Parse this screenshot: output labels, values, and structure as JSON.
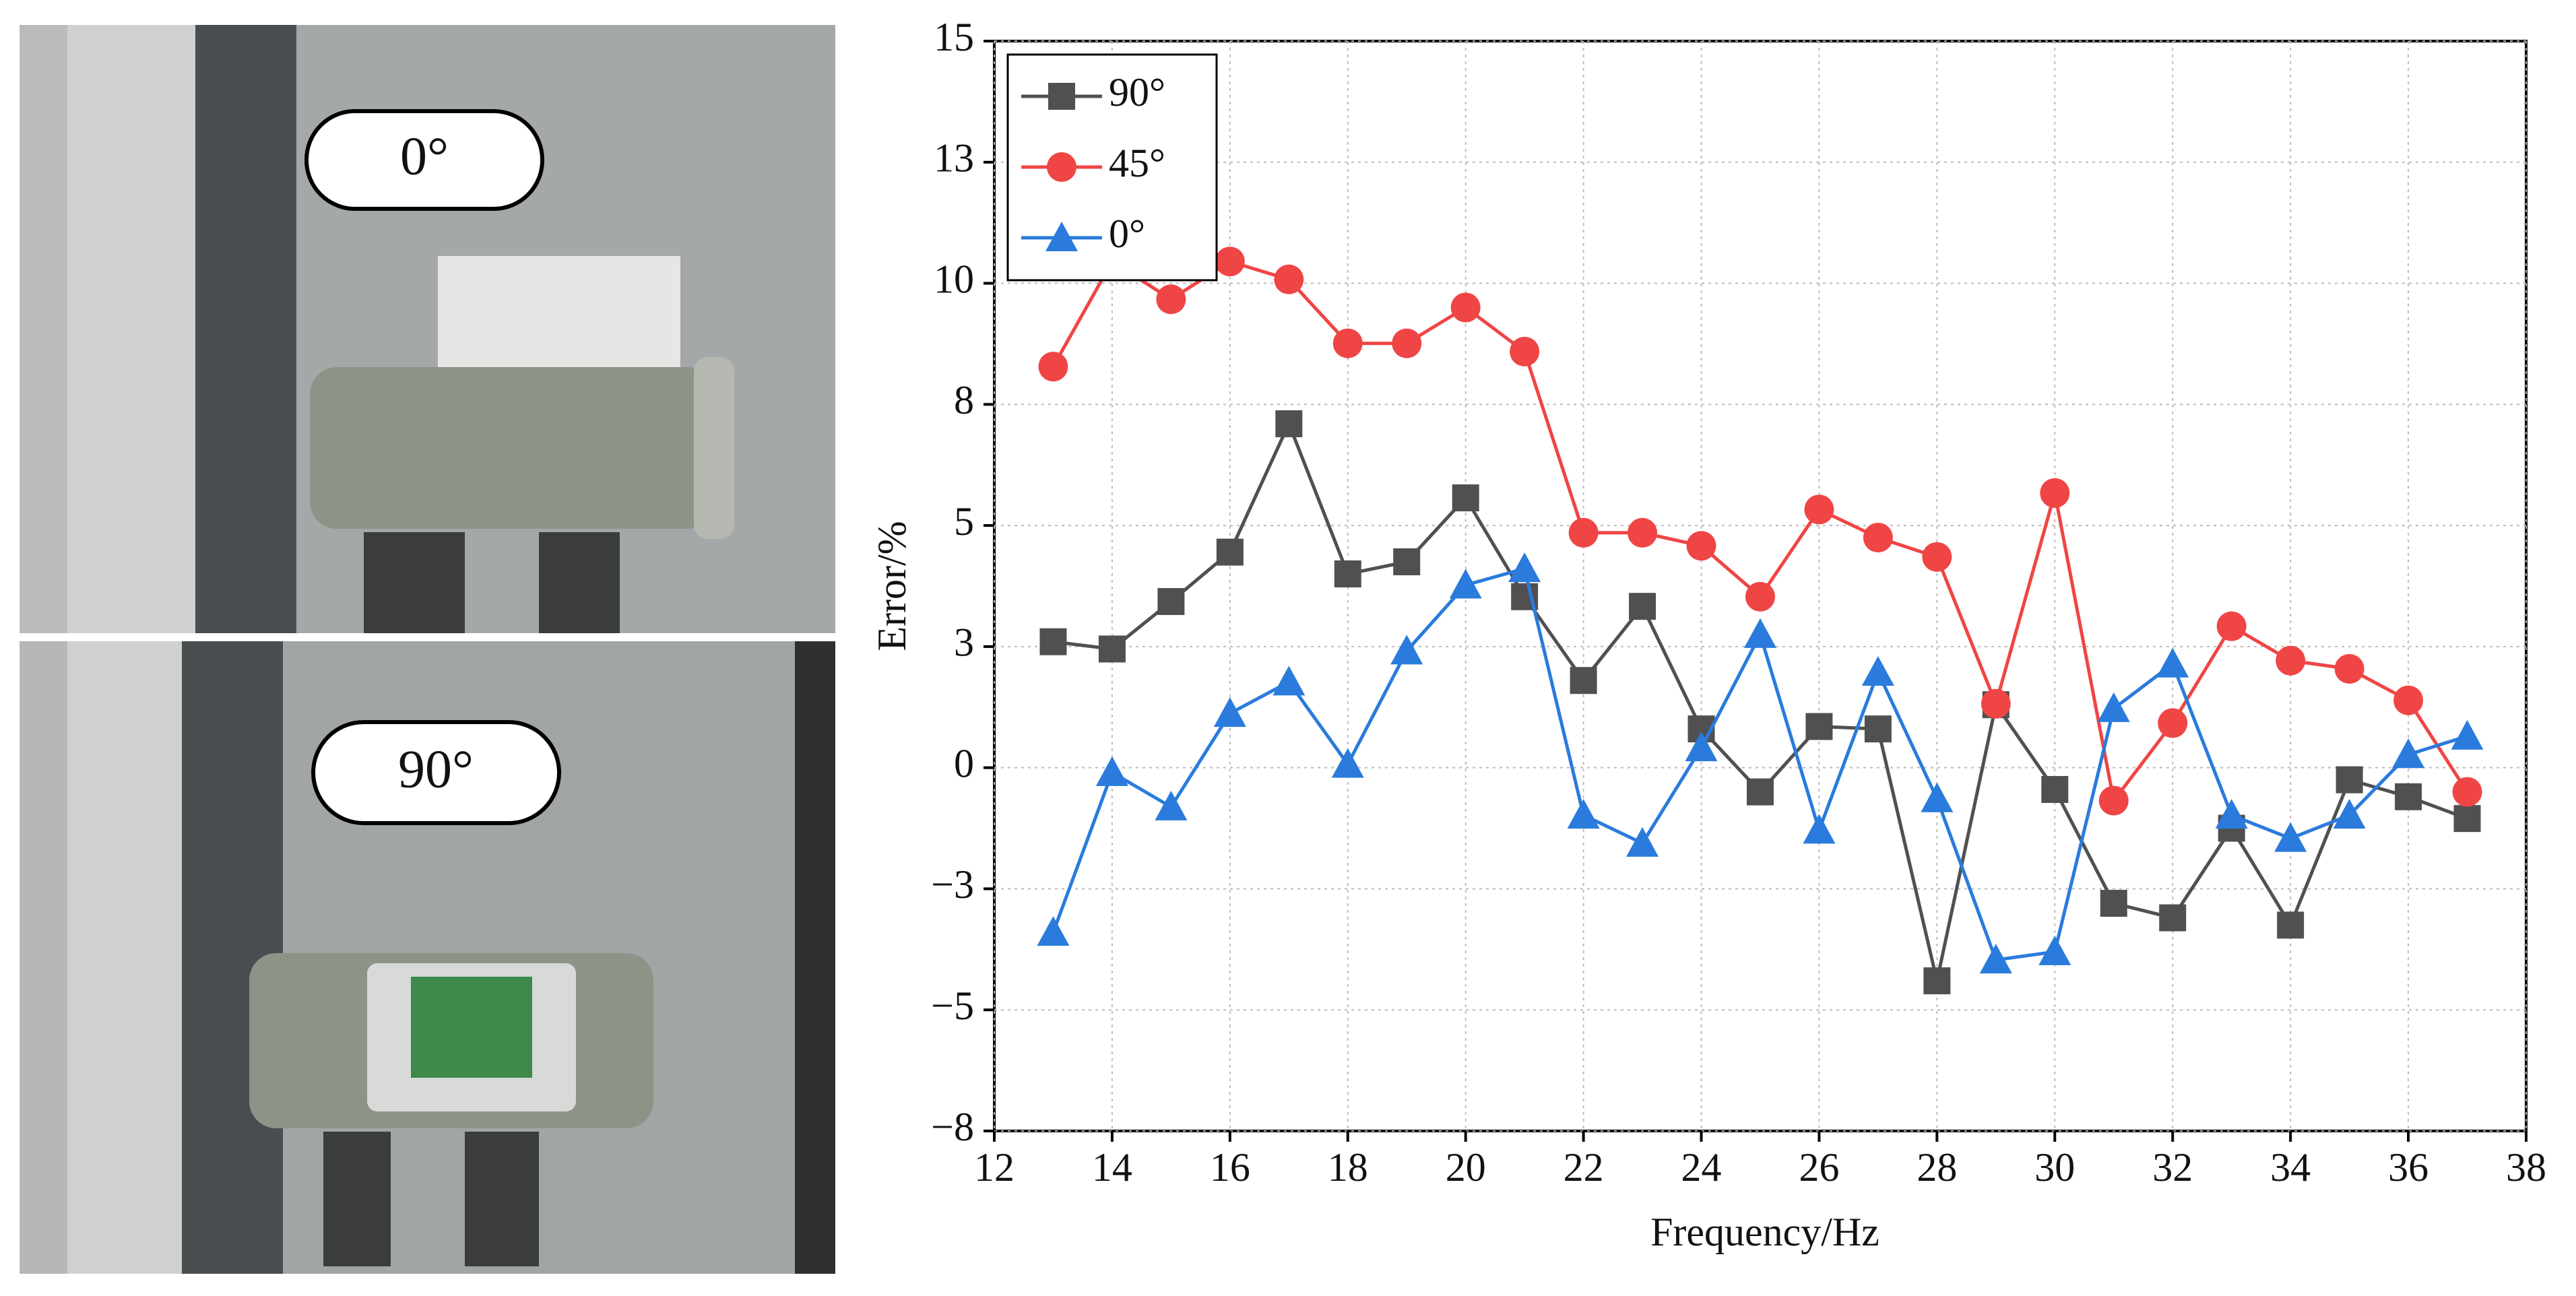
{
  "photos": {
    "top_label": "0°",
    "bottom_label": "90°"
  },
  "chart_data": {
    "type": "line",
    "x_label": "Frequency/Hz",
    "y_label": "Error/%",
    "x": [
      13,
      14,
      15,
      16,
      17,
      18,
      19,
      20,
      21,
      22,
      23,
      24,
      25,
      26,
      27,
      28,
      29,
      30,
      31,
      32,
      33,
      34,
      35,
      36,
      37
    ],
    "series": [
      {
        "name": "90°",
        "color": "#505050",
        "marker": "square",
        "values": [
          2.6,
          2.45,
          3.43,
          4.45,
          7.1,
          4.0,
          4.25,
          5.57,
          3.53,
          1.8,
          3.33,
          0.8,
          -0.5,
          0.85,
          0.8,
          -4.4,
          1.3,
          -0.45,
          -2.8,
          -3.1,
          -1.25,
          -3.25,
          -0.25,
          -0.6,
          -1.05
        ]
      },
      {
        "name": "45°",
        "color": "#f04545",
        "marker": "circle",
        "values": [
          8.28,
          10.45,
          9.67,
          10.45,
          10.08,
          8.76,
          8.76,
          9.5,
          8.59,
          4.85,
          4.85,
          4.58,
          3.53,
          5.33,
          4.75,
          4.35,
          1.32,
          5.67,
          -0.68,
          0.92,
          2.92,
          2.21,
          2.04,
          1.39,
          -0.5
        ]
      },
      {
        "name": "0°",
        "color": "#2a7bdc",
        "marker": "triangle",
        "values": [
          -3.4,
          -0.1,
          -0.81,
          1.12,
          1.77,
          0.07,
          2.41,
          3.77,
          4.11,
          -0.98,
          -1.56,
          0.41,
          2.75,
          -1.29,
          1.97,
          -0.64,
          -3.97,
          -3.8,
          1.22,
          2.14,
          -0.98,
          -1.46,
          -0.98,
          0.27,
          0.65
        ]
      }
    ],
    "xlim": [
      12,
      38
    ],
    "xticks": [
      12,
      14,
      16,
      18,
      20,
      22,
      24,
      26,
      28,
      30,
      32,
      34,
      36,
      38
    ],
    "ylim": [
      -7.5,
      15
    ],
    "yticks": [
      15,
      {
        "value": 12.5,
        "label": "13"
      },
      10,
      {
        "value": 7.5,
        "label": "8"
      },
      5,
      {
        "value": 2.5,
        "label": "3"
      },
      0,
      {
        "value": -2.5,
        "label": "−3"
      },
      {
        "value": -5,
        "label": "−5"
      },
      {
        "value": -7.5,
        "label": "−8"
      }
    ],
    "grid": true,
    "legend": "upper left"
  }
}
